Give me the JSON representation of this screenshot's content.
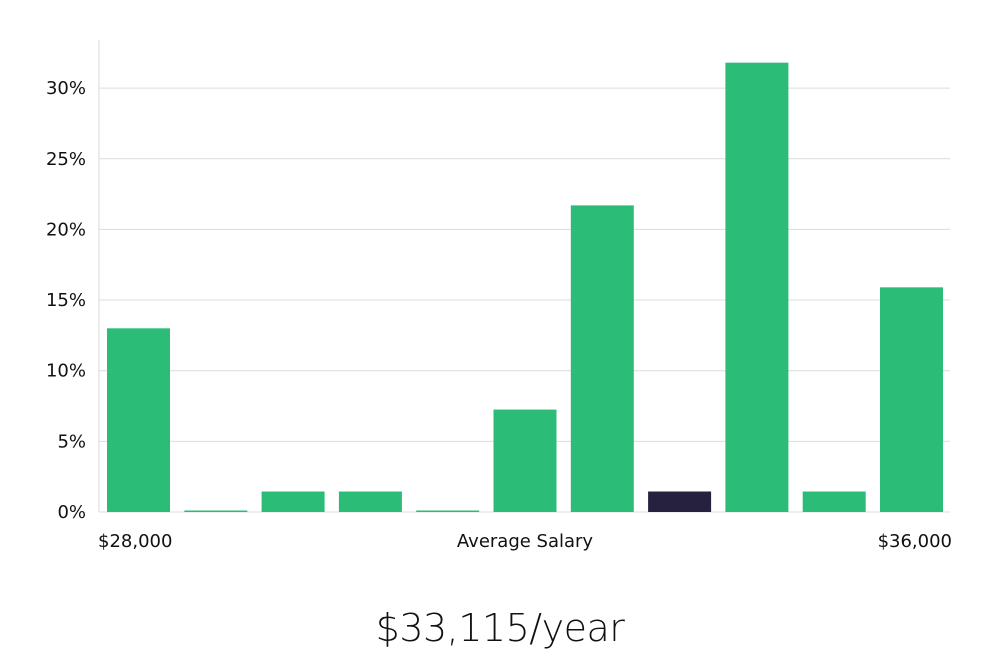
{
  "chart_data": {
    "type": "bar",
    "title": "",
    "xlabel": "Average Salary",
    "ylabel": "",
    "x_range_labels": {
      "min": "$28,000",
      "max": "$36,000"
    },
    "yticks": [
      "0%",
      "5%",
      "10%",
      "15%",
      "20%",
      "25%",
      "30%"
    ],
    "ylim": [
      0,
      33.5
    ],
    "values": [
      13.0,
      0.1,
      1.45,
      1.45,
      0.1,
      7.25,
      21.7,
      1.45,
      31.8,
      1.45,
      15.9
    ],
    "highlight_index": 7,
    "bar_color": "#2bbd77",
    "highlight_color": "#25213f",
    "grid": true
  },
  "summary": "$33,115/year"
}
